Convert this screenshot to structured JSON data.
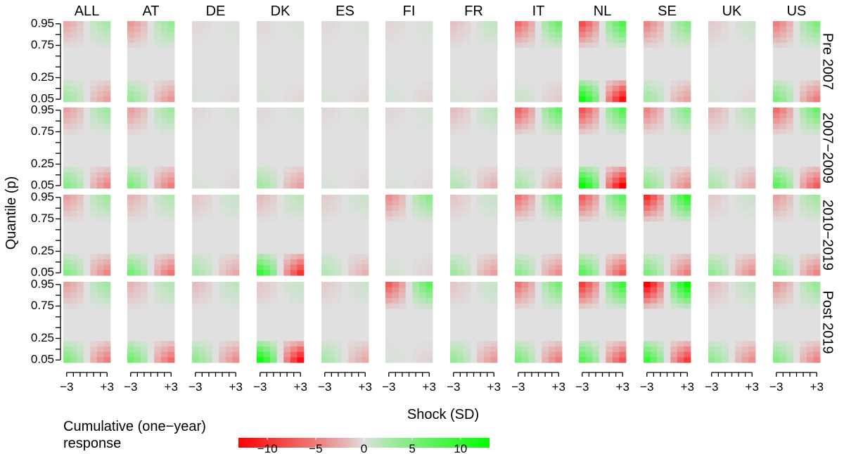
{
  "chart_data": {
    "type": "heatmap",
    "xlabel": "Shock (SD)",
    "ylabel": "Quantile (p)",
    "columns": [
      "ALL",
      "AT",
      "DE",
      "DK",
      "ES",
      "FI",
      "FR",
      "IT",
      "NL",
      "SE",
      "UK",
      "US"
    ],
    "rows": [
      "Pre 2007",
      "2007−2009",
      "2010−2019",
      "Post 2019"
    ],
    "x_ticks": [
      -3,
      -2,
      -1,
      0,
      1,
      2,
      3
    ],
    "x_tick_labels": [
      "−3",
      "+3"
    ],
    "y_ticks": [
      0.95,
      0.75,
      0.25,
      0.05
    ],
    "y_tick_labels": [
      "0.95",
      "0.75",
      "0.25",
      "0.05"
    ],
    "quantiles": [
      0.95,
      0.9,
      0.85,
      0.8,
      0.75,
      0.7,
      0.6,
      0.5,
      0.4,
      0.3,
      0.25,
      0.2,
      0.15,
      0.1,
      0.05
    ],
    "shocks": [
      -3,
      -2,
      -1,
      0,
      1,
      2,
      3
    ],
    "colorbar": {
      "title_line1": "Cumulative (one−year)",
      "title_line2": "response",
      "range": [
        -13,
        13
      ],
      "ticks": [
        -10,
        -5,
        0,
        5,
        10
      ],
      "tick_labels": [
        "−10",
        "−5",
        "0",
        "5",
        "10"
      ],
      "low_color": "#ff0000",
      "mid_color": "#e0e0e0",
      "high_color": "#00ff00"
    },
    "panel_strength_top": [
      [
        2.5,
        3.5,
        0.3,
        0.3,
        0.3,
        0.4,
        1.2,
        6.0,
        8.0,
        4.5,
        0.8,
        5.0
      ],
      [
        3.0,
        3.0,
        0.3,
        0.3,
        0.3,
        0.4,
        1.5,
        6.5,
        7.5,
        4.5,
        2.0,
        6.0
      ],
      [
        3.0,
        2.0,
        1.0,
        1.5,
        0.8,
        4.0,
        1.0,
        5.5,
        7.0,
        10.0,
        0.8,
        3.0
      ],
      [
        3.0,
        2.0,
        1.5,
        1.0,
        0.8,
        7.0,
        1.0,
        5.5,
        9.0,
        13.0,
        1.5,
        3.5
      ]
    ],
    "panel_strength_bottom": [
      [
        3.0,
        3.5,
        0.2,
        0.3,
        0.3,
        0.4,
        0.3,
        0.8,
        12.0,
        3.0,
        0.3,
        5.0
      ],
      [
        4.5,
        5.0,
        0.3,
        3.0,
        0.3,
        0.3,
        2.0,
        2.5,
        13.0,
        4.0,
        2.5,
        7.0
      ],
      [
        4.5,
        5.5,
        2.5,
        9.5,
        2.0,
        0.5,
        3.0,
        4.0,
        7.0,
        5.0,
        4.0,
        4.5
      ],
      [
        5.0,
        6.0,
        4.0,
        12.0,
        2.5,
        0.4,
        3.5,
        5.0,
        7.5,
        9.0,
        4.0,
        4.5
      ]
    ]
  }
}
